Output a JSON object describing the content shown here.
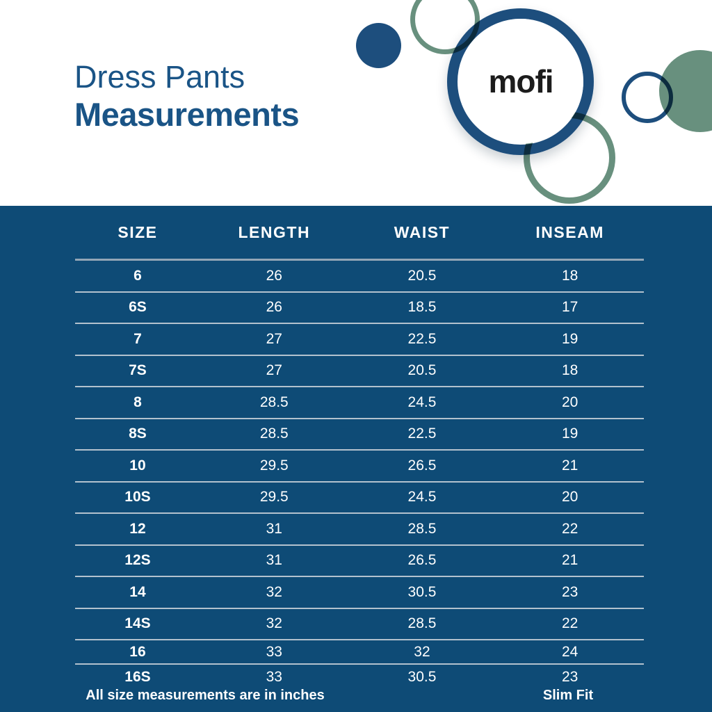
{
  "header": {
    "title_line1": "Dress Pants",
    "title_line2": "Measurements"
  },
  "logo": {
    "text": "mofi"
  },
  "colors": {
    "navy": "#1d4e7d",
    "sage": "#68907e",
    "panel": "#0e4b76",
    "title": "#1a5486",
    "line": "#b3c2ce",
    "header_line": "#93a6b6",
    "text_on_panel": "#ffffff",
    "logo_text": "#1c1c1c"
  },
  "table": {
    "columns": [
      "SIZE",
      "LENGTH",
      "WAIST",
      "INSEAM"
    ],
    "rows": [
      {
        "size": "6",
        "length": "26",
        "waist": "20.5",
        "inseam": "18"
      },
      {
        "size": "6S",
        "length": "26",
        "waist": "18.5",
        "inseam": "17"
      },
      {
        "size": "7",
        "length": "27",
        "waist": "22.5",
        "inseam": "19"
      },
      {
        "size": "7S",
        "length": "27",
        "waist": "20.5",
        "inseam": "18"
      },
      {
        "size": "8",
        "length": "28.5",
        "waist": "24.5",
        "inseam": "20"
      },
      {
        "size": "8S",
        "length": "28.5",
        "waist": "22.5",
        "inseam": "19"
      },
      {
        "size": "10",
        "length": "29.5",
        "waist": "26.5",
        "inseam": "21"
      },
      {
        "size": "10S",
        "length": "29.5",
        "waist": "24.5",
        "inseam": "20"
      },
      {
        "size": "12",
        "length": "31",
        "waist": "28.5",
        "inseam": "22"
      },
      {
        "size": "12S",
        "length": "31",
        "waist": "26.5",
        "inseam": "21"
      },
      {
        "size": "14",
        "length": "32",
        "waist": "30.5",
        "inseam": "23"
      },
      {
        "size": "14S",
        "length": "32",
        "waist": "28.5",
        "inseam": "22"
      },
      {
        "size": "16",
        "length": "33",
        "waist": "32",
        "inseam": "24"
      },
      {
        "size": "16S",
        "length": "33",
        "waist": "30.5",
        "inseam": "23"
      }
    ]
  },
  "footer": {
    "note": "All size measurements are in inches",
    "fit_label": "Slim Fit"
  }
}
